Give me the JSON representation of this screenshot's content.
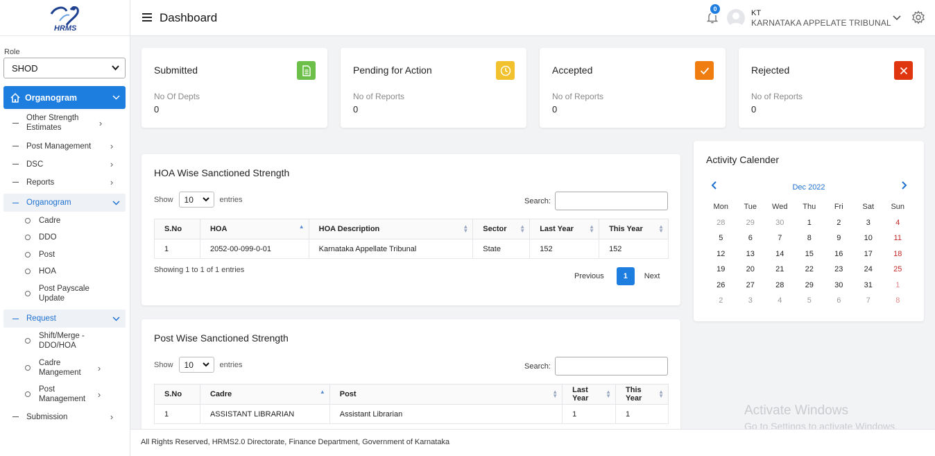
{
  "logo": {
    "text": "HRMS"
  },
  "sidebar": {
    "role_label": "Role",
    "role_value": "SHOD",
    "active": "Organogram",
    "items": [
      {
        "label": "Other Strength Estimates"
      },
      {
        "label": "Post Management"
      },
      {
        "label": "DSC"
      },
      {
        "label": "Reports"
      }
    ],
    "sub1": {
      "label": "Organogram",
      "children": [
        "Cadre",
        "DDO",
        "Post",
        "HOA",
        "Post Payscale Update"
      ]
    },
    "sub2": {
      "label": "Request",
      "children": [
        "Shift/Merge - DDO/HOA",
        "Cadre Mangement",
        "Post Management"
      ]
    },
    "submission": "Submission"
  },
  "header": {
    "title": "Dashboard",
    "notif_count": "0",
    "user_initials": "KT",
    "user_org": "KARNATAKA APPELATE TRIBUNAL"
  },
  "cards": [
    {
      "title": "Submitted",
      "sub": "No Of Depts",
      "value": "0",
      "color": "#6cc04a",
      "icon": "document-icon"
    },
    {
      "title": "Pending for Action",
      "sub": "No of Reports",
      "value": "0",
      "color": "#f2c12e",
      "icon": "clock-icon"
    },
    {
      "title": "Accepted",
      "sub": "No of Reports",
      "value": "0",
      "color": "#f07d10",
      "icon": "check-icon"
    },
    {
      "title": "Rejected",
      "sub": "No of Reports",
      "value": "0",
      "color": "#e0360f",
      "icon": "close-icon"
    }
  ],
  "hoa": {
    "title": "HOA Wise Sanctioned Strength",
    "show_label": "Show",
    "entries_value": "10",
    "entries_label": "entries",
    "search_label": "Search:",
    "columns": [
      "S.No",
      "HOA",
      "HOA Description",
      "Sector",
      "Last Year",
      "This Year"
    ],
    "rows": [
      [
        "1",
        "2052-00-099-0-01",
        "Karnataka Appellate Tribunal",
        "State",
        "152",
        "152"
      ]
    ],
    "info": "Showing 1 to 1 of 1 entries",
    "prev": "Previous",
    "page": "1",
    "next": "Next"
  },
  "post": {
    "title": "Post Wise Sanctioned Strength",
    "show_label": "Show",
    "entries_value": "10",
    "entries_label": "entries",
    "search_label": "Search:",
    "columns": [
      "S.No",
      "Cadre",
      "Post",
      "Last Year",
      "This Year"
    ],
    "rows": [
      [
        "1",
        "ASSISTANT LIBRARIAN",
        "Assistant Librarian",
        "1",
        "1"
      ]
    ]
  },
  "calendar": {
    "title": "Activity Calender",
    "month": "Dec 2022",
    "days": [
      "Mon",
      "Tue",
      "Wed",
      "Thu",
      "Fri",
      "Sat",
      "Sun"
    ],
    "weeks": [
      [
        "28",
        "29",
        "30",
        "1",
        "2",
        "3",
        "4"
      ],
      [
        "5",
        "6",
        "7",
        "8",
        "9",
        "10",
        "11"
      ],
      [
        "12",
        "13",
        "14",
        "15",
        "16",
        "17",
        "18"
      ],
      [
        "19",
        "20",
        "21",
        "22",
        "23",
        "24",
        "25"
      ],
      [
        "26",
        "27",
        "28",
        "29",
        "30",
        "31",
        "1"
      ],
      [
        "2",
        "3",
        "4",
        "5",
        "6",
        "7",
        "8"
      ]
    ]
  },
  "watermark": {
    "line1": "Activate Windows",
    "line2": "Go to Settings to activate Windows."
  },
  "footer": "All Rights Reserved, HRMS2.0 Directorate, Finance Department, Government of Karnataka"
}
